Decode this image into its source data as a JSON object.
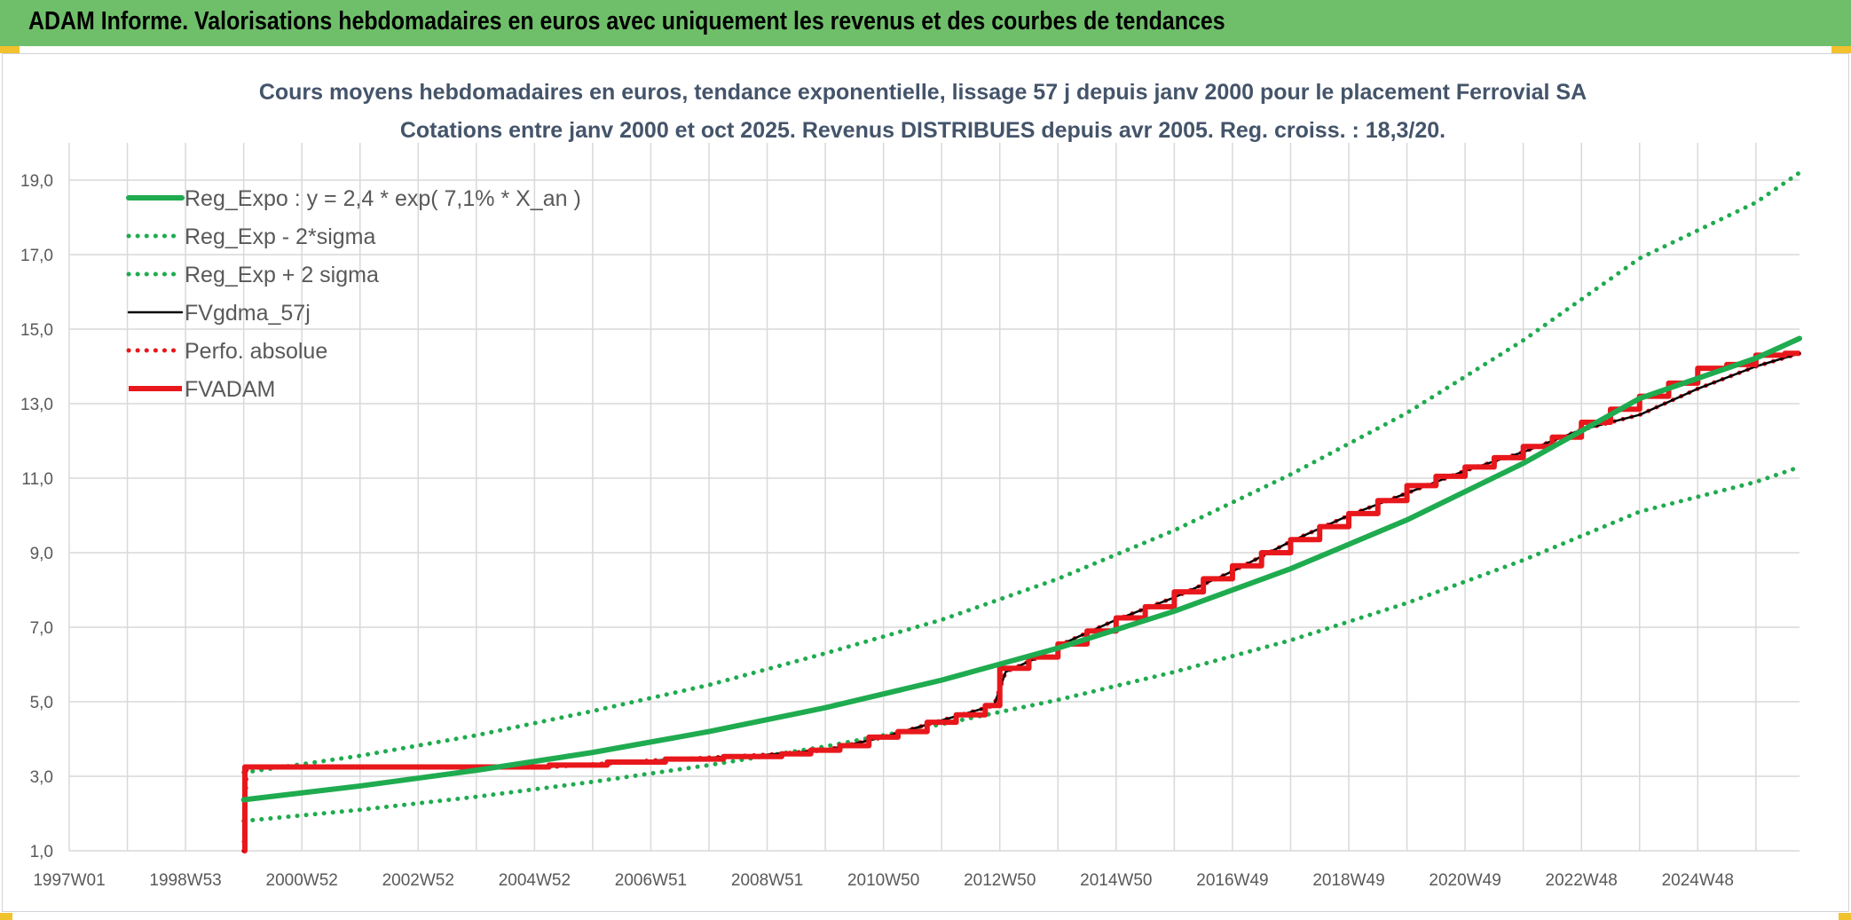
{
  "header": {
    "title": "ADAM Informe. Valorisations hebdomadaires en euros avec uniquement les revenus et des courbes de tendances"
  },
  "colors": {
    "header_bg": "#6fbf6a",
    "corner_marks": "#f2c12e",
    "regression": "#1fab4f",
    "fvgdma": "#000000",
    "fvadam": "#e8171b",
    "grid": "#d9d9d9"
  },
  "chart_data": {
    "type": "line",
    "title": "Cours moyens hebdomadaires en euros, tendance exponentielle, lissage 57 j depuis janv 2000 pour le placement Ferrovial SA",
    "subtitle": "Cotations entre janv 2000 et oct 2025. Revenus DISTRIBUES depuis avr 2005. Reg. croiss. : 18,3/20.",
    "xlabel": "",
    "ylabel": "",
    "x_range": [
      1997.0,
      2026.75
    ],
    "ylim": [
      1.0,
      20.0
    ],
    "grid": true,
    "legend_position": "top-left",
    "y_ticks": [
      "1,0",
      "3,0",
      "5,0",
      "7,0",
      "9,0",
      "11,0",
      "13,0",
      "15,0",
      "17,0",
      "19,0"
    ],
    "x_ticks": [
      {
        "label": "1997W01",
        "x": 1997.0
      },
      {
        "label": "1998W53",
        "x": 1999.0
      },
      {
        "label": "2000W52",
        "x": 2001.0
      },
      {
        "label": "2002W52",
        "x": 2003.0
      },
      {
        "label": "2004W52",
        "x": 2005.0
      },
      {
        "label": "2006W51",
        "x": 2007.0
      },
      {
        "label": "2008W51",
        "x": 2009.0
      },
      {
        "label": "2010W50",
        "x": 2011.0
      },
      {
        "label": "2012W50",
        "x": 2013.0
      },
      {
        "label": "2014W50",
        "x": 2015.0
      },
      {
        "label": "2016W49",
        "x": 2017.0
      },
      {
        "label": "2018W49",
        "x": 2019.0
      },
      {
        "label": "2020W49",
        "x": 2021.0
      },
      {
        "label": "2022W48",
        "x": 2023.0
      },
      {
        "label": "2024W48",
        "x": 2025.0
      }
    ],
    "series": [
      {
        "name": "Reg_Expo : y = 2,4 * exp( 7,1% *  X_an )",
        "style": "solid-thick",
        "color": "#1fab4f",
        "x": [
          2000.0,
          2002.0,
          2004.0,
          2006.0,
          2008.0,
          2010.0,
          2012.0,
          2014.0,
          2016.0,
          2018.0,
          2020.0,
          2022.0,
          2024.0,
          2026.0,
          2026.75
        ],
        "values": [
          2.37,
          2.74,
          3.16,
          3.64,
          4.2,
          4.84,
          5.58,
          6.44,
          7.43,
          8.57,
          9.88,
          11.4,
          13.14,
          14.22,
          14.75
        ]
      },
      {
        "name": "Reg_Exp - 2*sigma",
        "style": "dotted",
        "color": "#1fab4f",
        "x": [
          2000.0,
          2002.0,
          2004.0,
          2006.0,
          2008.0,
          2010.0,
          2012.0,
          2014.0,
          2016.0,
          2018.0,
          2020.0,
          2022.0,
          2024.0,
          2026.0,
          2026.75
        ],
        "values": [
          1.8,
          2.1,
          2.45,
          2.85,
          3.3,
          3.8,
          4.4,
          5.05,
          5.8,
          6.65,
          7.65,
          8.8,
          10.1,
          10.9,
          11.3
        ]
      },
      {
        "name": "Reg_Exp + 2 sigma",
        "style": "dotted",
        "color": "#1fab4f",
        "x": [
          2000.0,
          2002.0,
          2004.0,
          2006.0,
          2008.0,
          2010.0,
          2012.0,
          2014.0,
          2016.0,
          2018.0,
          2020.0,
          2022.0,
          2024.0,
          2026.0,
          2026.75
        ],
        "values": [
          3.1,
          3.55,
          4.1,
          4.75,
          5.45,
          6.3,
          7.2,
          8.3,
          9.6,
          11.1,
          12.75,
          14.7,
          16.9,
          18.4,
          19.2
        ]
      },
      {
        "name": "FVgdma_57j",
        "style": "solid",
        "color": "#000000",
        "x": [
          2000.0,
          2000.05,
          2005.25,
          2006.0,
          2007.0,
          2008.0,
          2009.0,
          2010.0,
          2011.0,
          2012.0,
          2012.9,
          2013.1,
          2013.6,
          2014.0,
          2015.0,
          2016.0,
          2017.0,
          2018.0,
          2019.0,
          2020.0,
          2021.0,
          2022.0,
          2023.0,
          2024.0,
          2025.0,
          2026.0,
          2026.75
        ],
        "values": [
          1.0,
          3.25,
          3.25,
          3.32,
          3.42,
          3.5,
          3.58,
          3.7,
          4.05,
          4.5,
          4.9,
          5.8,
          6.15,
          6.5,
          7.2,
          7.8,
          8.5,
          9.3,
          10.0,
          10.6,
          11.2,
          11.7,
          12.3,
          12.7,
          13.4,
          14.0,
          14.35
        ]
      },
      {
        "name": "Perfo. absolue",
        "style": "dotted",
        "color": "#e8171b",
        "x": [
          2000.0,
          2000.05,
          2005.25,
          2006.0,
          2007.0,
          2008.0,
          2009.0,
          2010.0,
          2011.0,
          2012.0,
          2012.9,
          2013.1,
          2013.6,
          2014.0,
          2015.0,
          2016.0,
          2017.0,
          2018.0,
          2019.0,
          2020.0,
          2021.0,
          2022.0,
          2023.0,
          2024.0,
          2025.0,
          2026.0,
          2026.75
        ],
        "values": [
          1.0,
          3.25,
          3.25,
          3.32,
          3.42,
          3.5,
          3.58,
          3.7,
          4.05,
          4.5,
          4.9,
          5.8,
          6.15,
          6.5,
          7.2,
          7.8,
          8.5,
          9.3,
          10.0,
          10.6,
          11.2,
          11.7,
          12.3,
          12.7,
          13.4,
          14.0,
          14.35
        ]
      },
      {
        "name": "FVADAM",
        "style": "step-thick",
        "color": "#e8171b",
        "x": [
          2000.0,
          2000.02,
          2005.25,
          2006.25,
          2007.25,
          2008.25,
          2009.25,
          2009.75,
          2010.25,
          2010.75,
          2011.25,
          2011.75,
          2012.25,
          2012.75,
          2013.0,
          2013.5,
          2014.0,
          2014.5,
          2015.0,
          2015.5,
          2016.0,
          2016.5,
          2017.0,
          2017.5,
          2018.0,
          2018.5,
          2019.0,
          2019.5,
          2020.0,
          2020.5,
          2021.0,
          2021.5,
          2022.0,
          2022.5,
          2023.0,
          2023.5,
          2024.0,
          2024.5,
          2025.0,
          2025.5,
          2026.0,
          2026.5,
          2026.75
        ],
        "values": [
          1.0,
          3.25,
          3.3,
          3.38,
          3.46,
          3.53,
          3.6,
          3.7,
          3.82,
          4.05,
          4.2,
          4.45,
          4.65,
          4.9,
          5.9,
          6.2,
          6.55,
          6.9,
          7.25,
          7.55,
          7.95,
          8.3,
          8.65,
          9.0,
          9.35,
          9.7,
          10.05,
          10.4,
          10.8,
          11.05,
          11.3,
          11.55,
          11.85,
          12.1,
          12.5,
          12.85,
          13.2,
          13.55,
          13.95,
          14.05,
          14.3,
          14.35,
          14.35
        ]
      }
    ]
  }
}
